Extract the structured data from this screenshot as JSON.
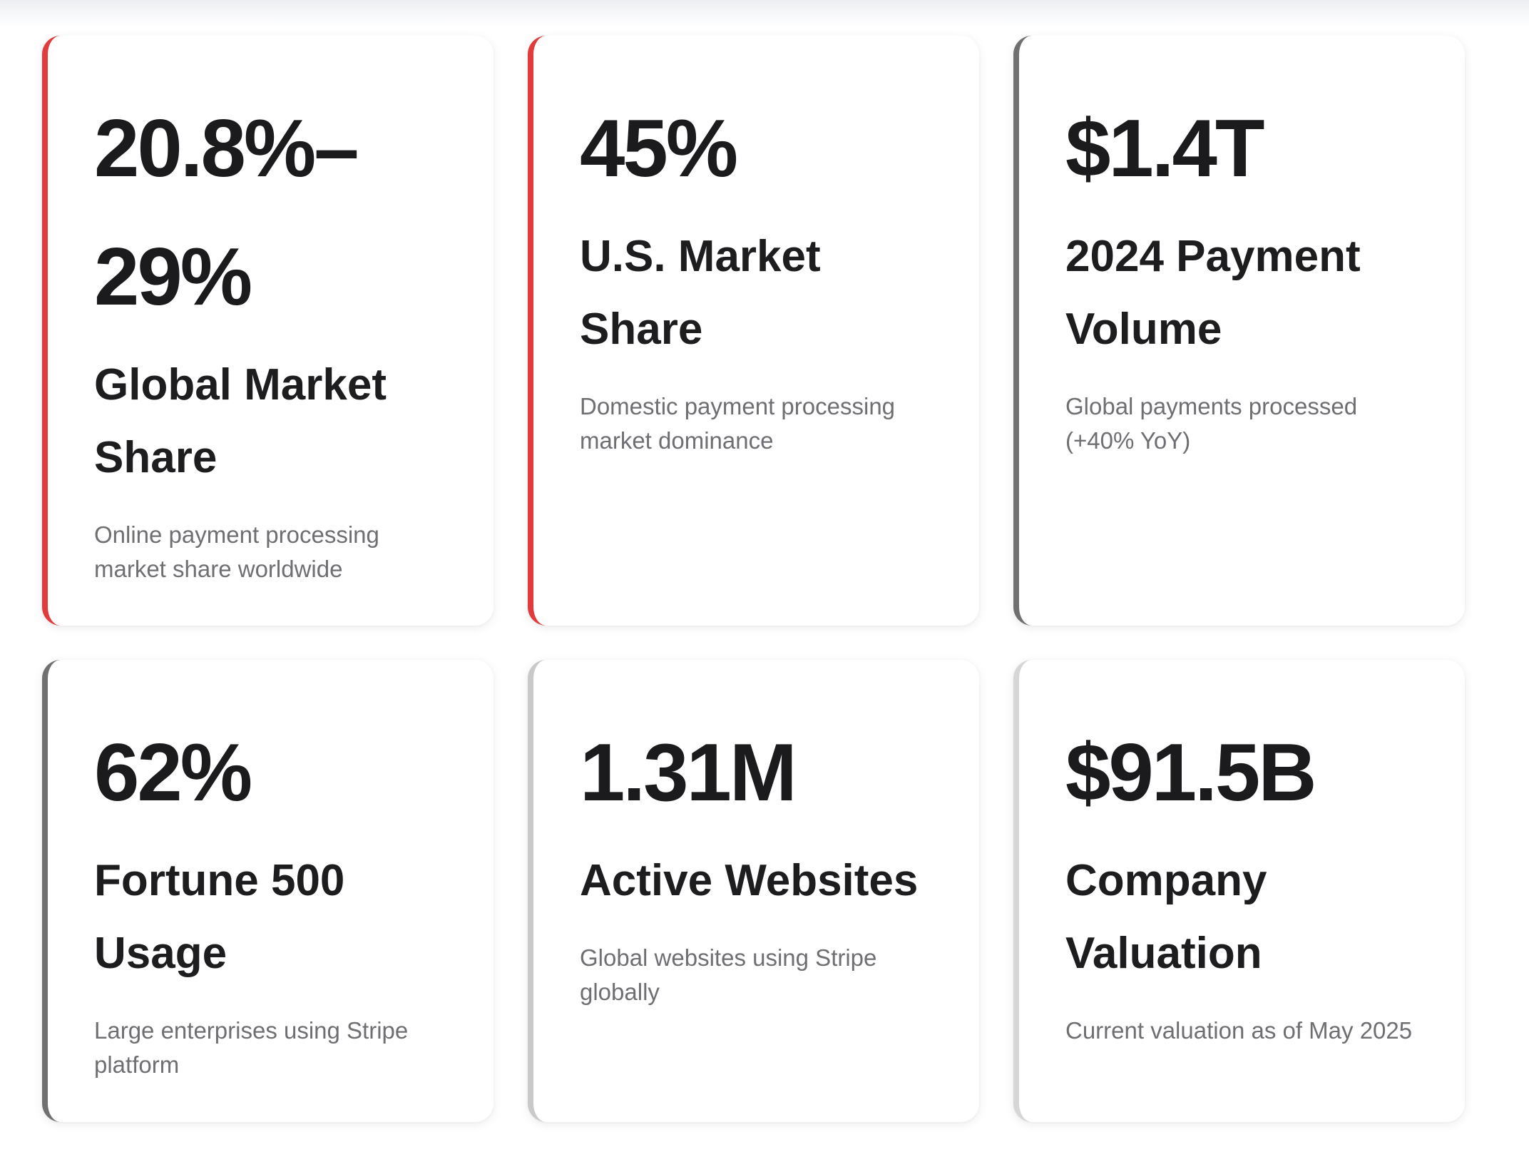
{
  "cards": [
    {
      "value": "20.8%–29%",
      "title": "Global Market Share",
      "description": "Online payment processing market share worldwide"
    },
    {
      "value": "45%",
      "title": "U.S. Market Share",
      "description": "Domestic payment processing market dominance"
    },
    {
      "value": "$1.4T",
      "title": "2024 Payment Volume",
      "description": "Global payments processed (+40% YoY)"
    },
    {
      "value": "62%",
      "title": "Fortune 500 Usage",
      "description": "Large enterprises using Stripe platform"
    },
    {
      "value": "1.31M",
      "title": "Active Websites",
      "description": "Global websites using Stripe globally"
    },
    {
      "value": "$91.5B",
      "title": "Company Valuation",
      "description": "Current valuation as of May 2025"
    }
  ],
  "accents": {
    "red": "#e23b3b",
    "gray": "#707070",
    "light_gray": "#d6d6d6"
  }
}
